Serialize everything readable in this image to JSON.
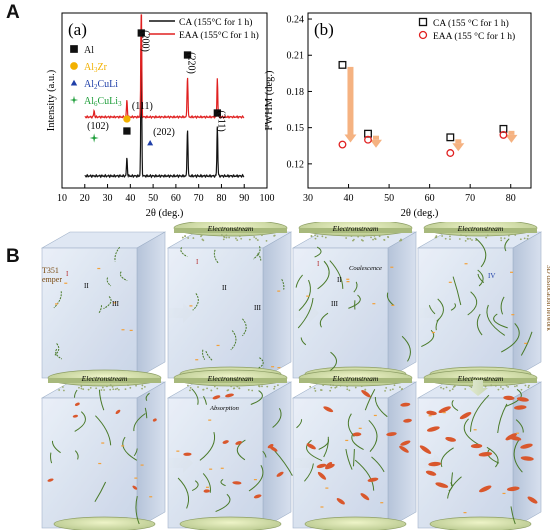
{
  "figure": {
    "label_A": "A",
    "label_B": "B",
    "stage_side_left": "T351\nemper",
    "stage_side_right": "3D dislocation network",
    "electronstream": "Electronstream",
    "coalescence": "Coalescence",
    "absorption": "Absorption",
    "roman": {
      "I": "I",
      "II": "II",
      "III": "III",
      "IV": "IV"
    }
  },
  "chart_data": [
    {
      "type": "line",
      "panel": "(a)",
      "xlabel": "2θ (deg.)",
      "ylabel": "Intensity (a.u.)",
      "xlim": [
        10,
        100
      ],
      "xticks": [
        10,
        20,
        30,
        40,
        50,
        60,
        70,
        80,
        90,
        100
      ],
      "series": [
        {
          "name": "CA (155°C for 1 h)",
          "color": "#111111",
          "peaks": [
            {
              "x": 38.5,
              "h": 0.12
            },
            {
              "x": 44.8,
              "h": 1.0
            },
            {
              "x": 65.1,
              "h": 0.32
            },
            {
              "x": 78.2,
              "h": 0.33
            }
          ]
        },
        {
          "name": "EAA (155°C for 1 h)",
          "color": "#e02020",
          "peaks": [
            {
              "x": 24.1,
              "h": 0.05
            },
            {
              "x": 38.5,
              "h": 0.13
            },
            {
              "x": 44.8,
              "h": 1.0
            },
            {
              "x": 65.1,
              "h": 0.32
            },
            {
              "x": 78.2,
              "h": 0.3
            }
          ]
        }
      ],
      "phase_legend": [
        {
          "label": "Al",
          "marker": "square",
          "color": "#111111"
        },
        {
          "label": "Al3Zr",
          "marker": "circle",
          "color": "#f2b100"
        },
        {
          "label": "Al2CuLi",
          "marker": "triangle",
          "color": "#1f3fa8"
        },
        {
          "label": "Al6CuLi3",
          "marker": "star",
          "color": "#1e9e3a"
        }
      ],
      "annotations": [
        {
          "text": "(102)",
          "x": 24.1
        },
        {
          "text": "(111)",
          "x": 38.5
        },
        {
          "text": "(200)",
          "x": 44.8
        },
        {
          "text": "(202)",
          "x": 48.7
        },
        {
          "text": "(220)",
          "x": 65.1
        },
        {
          "text": "(311)",
          "x": 78.2
        }
      ]
    },
    {
      "type": "scatter",
      "panel": "(b)",
      "xlabel": "2θ (deg.)",
      "ylabel": "FWHM (deg.)",
      "xlim": [
        30,
        85
      ],
      "ylim": [
        0.1,
        0.245
      ],
      "xticks": [
        30,
        40,
        50,
        60,
        70,
        80
      ],
      "yticks": [
        0.12,
        0.15,
        0.18,
        0.21,
        0.24
      ],
      "ytick_labels": [
        "0.12",
        "0.15",
        "0.18",
        "0.21",
        "0.24"
      ],
      "series": [
        {
          "name": "CA (155 °C for 1 h)",
          "marker": "square",
          "color": "#111111",
          "x": [
            38.5,
            44.8,
            65.1,
            78.2
          ],
          "y": [
            0.202,
            0.145,
            0.142,
            0.149
          ]
        },
        {
          "name": "EAA (155 °C for 1 h)",
          "marker": "circle",
          "color": "#e02020",
          "x": [
            38.5,
            44.8,
            65.1,
            78.2
          ],
          "y": [
            0.136,
            0.14,
            0.129,
            0.144
          ]
        }
      ]
    }
  ]
}
